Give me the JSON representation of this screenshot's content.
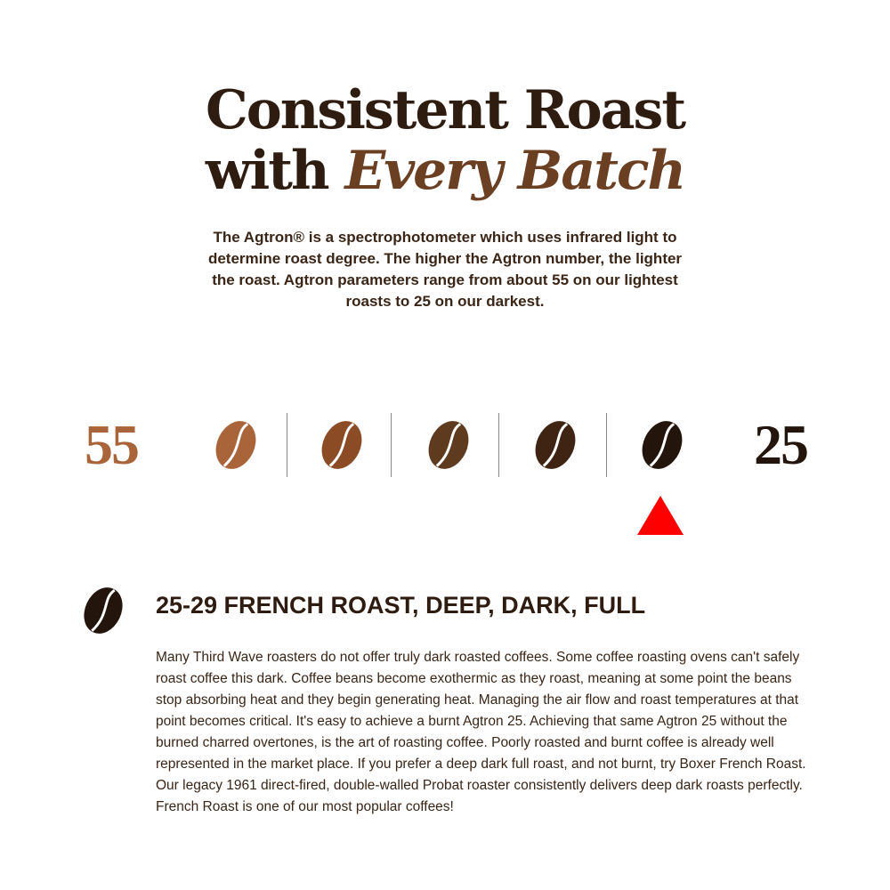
{
  "header": {
    "title_line1": "Consistent Roast",
    "title_line2_plain": "with ",
    "title_line2_accent": "Every Batch",
    "intro": "The Agtron® is a spectrophotometer which uses infrared light to determine roast degree. The higher the Agtron number, the lighter the roast. Agtron parameters range from about 55 on our lightest roasts to 25 on our darkest."
  },
  "scale": {
    "left_label": "55",
    "right_label": "25",
    "left_color": "#a9643a",
    "right_color": "#24150c",
    "beans": [
      {
        "icon": "coffee-bean-icon",
        "color": "#a9643a"
      },
      {
        "icon": "coffee-bean-icon",
        "color": "#8b4b25"
      },
      {
        "icon": "coffee-bean-icon",
        "color": "#5e3a1f"
      },
      {
        "icon": "coffee-bean-icon",
        "color": "#3f2414"
      },
      {
        "icon": "coffee-bean-icon",
        "color": "#24150c"
      }
    ],
    "selected_index": 4,
    "marker_color": "#ff0000"
  },
  "detail": {
    "icon": "coffee-bean-icon",
    "heading": "25-29 FRENCH ROAST, DEEP, DARK, FULL",
    "body": "Many Third Wave roasters do not offer truly dark roasted coffees. Some coffee roasting ovens can't safely roast coffee this dark. Coffee beans become exothermic as they roast, meaning at some point the beans stop absorbing heat and they begin generating heat. Managing the air flow and roast temperatures at that point becomes critical. It's easy to achieve a burnt Agtron 25. Achieving that same Agtron 25 without the burned charred overtones, is the art of roasting coffee. Poorly roasted and burnt coffee is already well represented in the market place. If you prefer a deep dark full roast, and not burnt, try Boxer French Roast. Our legacy 1961 direct-fired, double-walled Probat roaster consistently delivers deep dark roasts perfectly. French Roast is one of our most popular coffees!"
  }
}
